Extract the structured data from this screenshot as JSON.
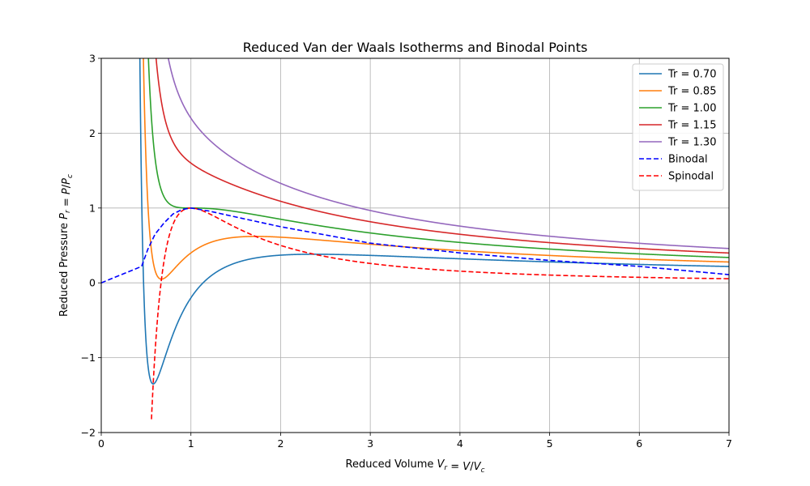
{
  "chart_data": {
    "type": "line",
    "title": "Reduced Van der Waals Isotherms and Binodal Points",
    "xlabel_main": "Reduced Volume ",
    "xlabel_math": "V_r = V/V_c",
    "ylabel_main": "Reduced Pressure ",
    "ylabel_math": "P_r = P/P_c",
    "xlim": [
      0,
      7
    ],
    "ylim": [
      -2,
      3
    ],
    "xticks": [
      0,
      1,
      2,
      3,
      4,
      5,
      6,
      7
    ],
    "yticks": [
      -2,
      -1,
      0,
      1,
      2,
      3
    ],
    "xtick_labels": [
      "0",
      "1",
      "2",
      "3",
      "4",
      "5",
      "6",
      "7"
    ],
    "ytick_labels": [
      "−2",
      "−1",
      "0",
      "1",
      "2",
      "3"
    ],
    "grid": true,
    "legend_position": "top-right",
    "isotherms": [
      {
        "name": "Tr = 0.70",
        "Tr": 0.7,
        "color": "#1f77b4",
        "style": "solid"
      },
      {
        "name": "Tr = 0.85",
        "Tr": 0.85,
        "color": "#ff7f0e",
        "style": "solid"
      },
      {
        "name": "Tr = 1.00",
        "Tr": 1.0,
        "color": "#2ca02c",
        "style": "solid"
      },
      {
        "name": "Tr = 1.15",
        "Tr": 1.15,
        "color": "#d62728",
        "style": "solid"
      },
      {
        "name": "Tr = 1.30",
        "Tr": 1.3,
        "color": "#9467bd",
        "style": "solid"
      }
    ],
    "binodal": {
      "name": "Binodal",
      "color": "#0000ff",
      "style": "dashed",
      "x": [
        0.0,
        0.45,
        0.52,
        0.6,
        0.7,
        0.8,
        0.9,
        1.0,
        1.2,
        1.5,
        2.0,
        3.0,
        4.0,
        5.0,
        6.0,
        7.0
      ],
      "y": [
        0.0,
        0.22,
        0.45,
        0.65,
        0.8,
        0.92,
        0.98,
        1.0,
        0.96,
        0.88,
        0.75,
        0.53,
        0.4,
        0.3,
        0.22,
        0.11
      ]
    },
    "spinodal": {
      "name": "Spinodal",
      "color": "#ff0000",
      "style": "dashed"
    }
  }
}
